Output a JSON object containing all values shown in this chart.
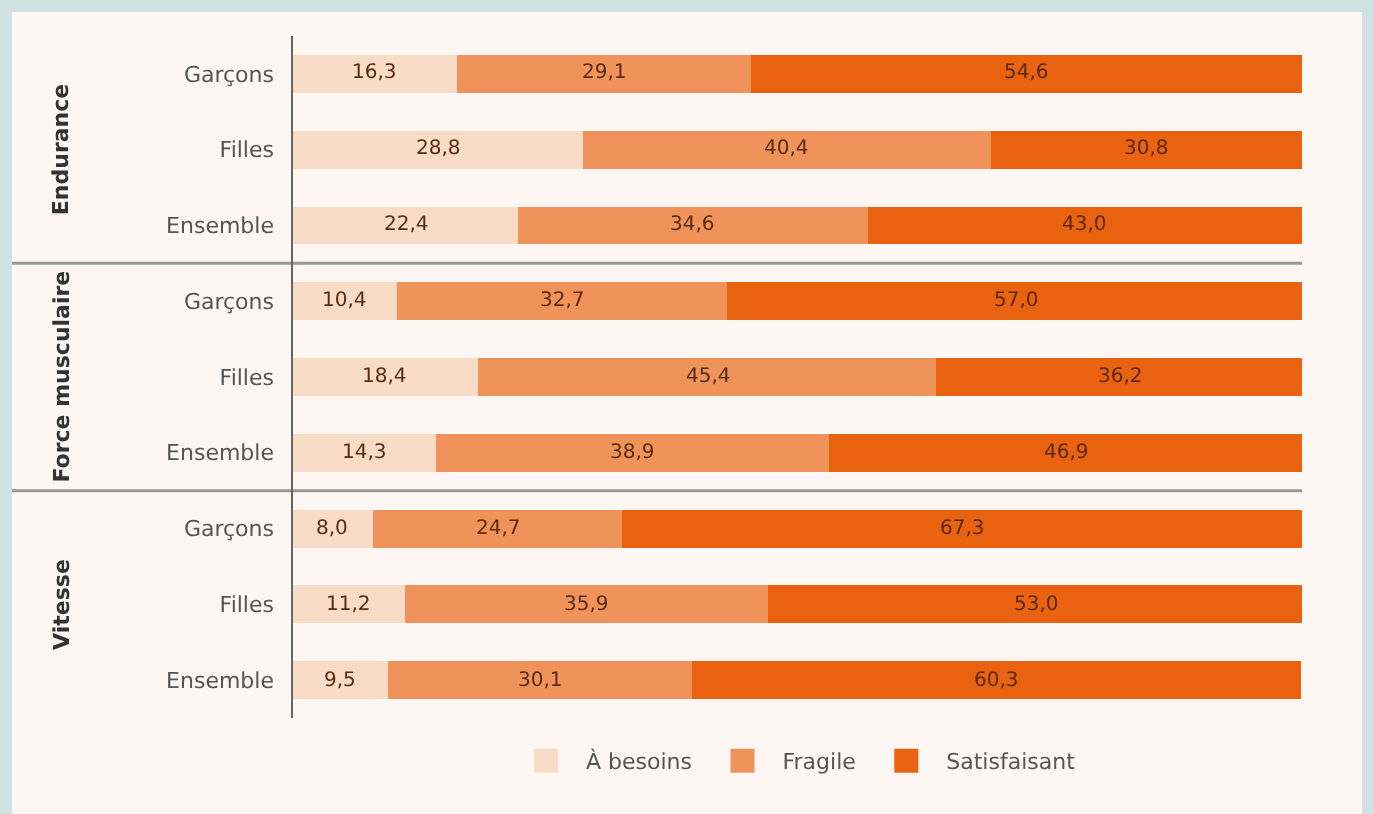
{
  "chart_data": {
    "type": "bar",
    "orientation": "horizontal",
    "stacked": true,
    "categories": [
      "Garçons",
      "Filles",
      "Ensemble",
      "Garçons",
      "Filles",
      "Ensemble",
      "Garçons",
      "Filles",
      "Ensemble"
    ],
    "series": [
      {
        "name": "À besoins",
        "color": "#f8dcc6",
        "values": [
          16.3,
          28.8,
          22.4,
          10.4,
          18.4,
          14.3,
          8.0,
          11.2,
          9.5
        ],
        "value_labels": [
          "16,3",
          "28,8",
          "22,4",
          "10,4",
          "18,4",
          "14,3",
          "8,0",
          "11,2",
          "9,5"
        ]
      },
      {
        "name": "Fragile",
        "color": "#f0935a",
        "values": [
          29.1,
          40.4,
          34.6,
          32.7,
          45.4,
          38.9,
          24.7,
          35.9,
          30.1
        ],
        "value_labels": [
          "29,1",
          "40,4",
          "34,6",
          "32,7",
          "45,4",
          "38,9",
          "24,7",
          "35,9",
          "30,1"
        ]
      },
      {
        "name": "Satisfaisant",
        "color": "#e8620f",
        "values": [
          54.6,
          30.8,
          43.0,
          57.0,
          36.2,
          46.9,
          67.3,
          53.0,
          60.3
        ],
        "value_labels": [
          "54,6",
          "30,8",
          "43,0",
          "57,0",
          "36,2",
          "46,9",
          "67,3",
          "53,0",
          "60,3"
        ]
      }
    ],
    "xlim": [
      0,
      100
    ],
    "tick_labels": "y",
    "grid": false,
    "legend": "bottom",
    "annotations": [
      "Endurance",
      "Force musculaire",
      "Vitesse"
    ]
  }
}
